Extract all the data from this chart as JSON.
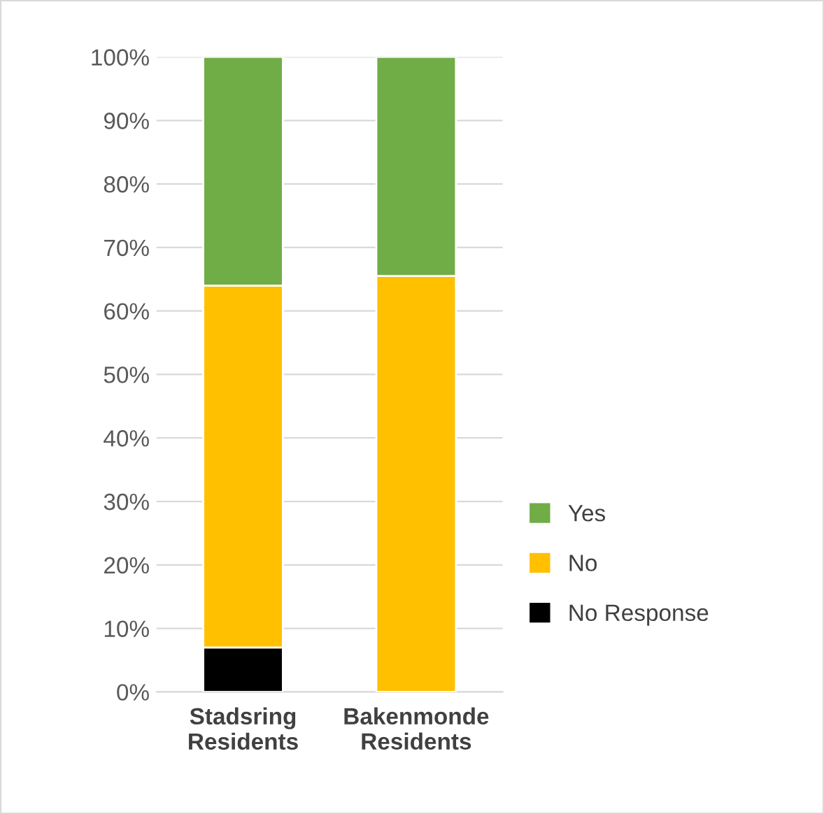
{
  "chart_data": {
    "type": "bar",
    "stacked": true,
    "categories": [
      "Stadsring\nResidents",
      "Bakenmonde\nResidents"
    ],
    "series": [
      {
        "name": "No Response",
        "color": "#000000",
        "values": [
          7,
          0
        ]
      },
      {
        "name": "No",
        "color": "#ffc000",
        "values": [
          57,
          65.5
        ]
      },
      {
        "name": "Yes",
        "color": "#70ad47",
        "values": [
          36,
          34.5
        ]
      }
    ],
    "ylim": [
      0,
      100
    ],
    "yticks": [
      {
        "value": 0,
        "label": "0%"
      },
      {
        "value": 10,
        "label": "10%"
      },
      {
        "value": 20,
        "label": "20%"
      },
      {
        "value": 30,
        "label": "30%"
      },
      {
        "value": 40,
        "label": "40%"
      },
      {
        "value": 50,
        "label": "50%"
      },
      {
        "value": 60,
        "label": "60%"
      },
      {
        "value": 70,
        "label": "70%"
      },
      {
        "value": 80,
        "label": "80%"
      },
      {
        "value": 90,
        "label": "90%"
      },
      {
        "value": 100,
        "label": "100%"
      }
    ],
    "grid": "y",
    "legend": "right"
  }
}
